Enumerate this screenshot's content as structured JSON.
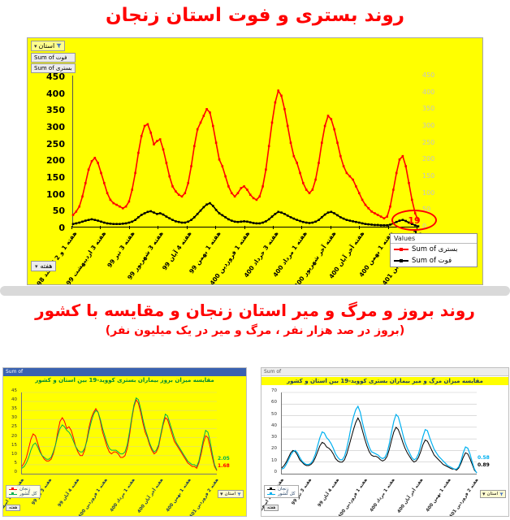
{
  "titles": {
    "second": "روند بروز و مرگ و میر استان زنجان و مقایسه با کشور",
    "subtitle": "(بروز در صد هزار نفر ، مرگ و میر در یک میلیون نفر)"
  },
  "main_chart": {
    "filter_label": "استان",
    "value_buttons": [
      "Sum of فوت",
      "Sum of بستری"
    ],
    "axis_button": "هفته",
    "legend_header": "Values",
    "annotation": "19",
    "final_death": "1"
  },
  "small_charts": {
    "header_text": "Sum of",
    "filter_label": "استان",
    "week_label": "هفته"
  },
  "chart_data": [
    {
      "id": "main",
      "type": "line",
      "title": "روند بستری و فوت استان زنجان",
      "xlabel": "",
      "ylabel": "",
      "ylim": [
        0,
        450
      ],
      "yticks": [
        0,
        50,
        100,
        150,
        200,
        250,
        300,
        350,
        400,
        450
      ],
      "grid": null,
      "legend_position": "bottom-right",
      "x_labels": [
        "هفته 1 و 2 اسفند 1398",
        "هفته 3 اردیبهشت 99",
        "هفته 3 تیر 99",
        "هفته 3 شهریور 99",
        "هفته 4 آبان 99",
        "هفته 1 بهمن 99",
        "هفته 1 فروردین 400",
        "هفته 3 خرداد 400",
        "هفته 1 مرداد 400",
        "هفته آخر شهریور 400",
        "هفته آخر آبان 400",
        "هفته 1 بهمن 400",
        "هفته 2 فروردین 1401"
      ],
      "series": [
        {
          "name": "Sum of بستری",
          "color": "#FF0000",
          "width": 1.6,
          "markers": true,
          "values": [
            35,
            45,
            60,
            90,
            130,
            170,
            195,
            205,
            190,
            160,
            130,
            100,
            80,
            70,
            65,
            60,
            55,
            60,
            75,
            110,
            160,
            220,
            270,
            300,
            305,
            280,
            245,
            255,
            260,
            230,
            190,
            150,
            120,
            105,
            95,
            90,
            100,
            130,
            180,
            240,
            290,
            310,
            330,
            350,
            340,
            300,
            250,
            200,
            180,
            150,
            120,
            100,
            90,
            100,
            115,
            120,
            110,
            95,
            85,
            80,
            90,
            120,
            170,
            240,
            310,
            370,
            405,
            390,
            350,
            300,
            250,
            210,
            190,
            160,
            130,
            110,
            100,
            110,
            140,
            190,
            250,
            300,
            330,
            320,
            290,
            250,
            210,
            180,
            160,
            150,
            140,
            120,
            100,
            80,
            65,
            55,
            45,
            40,
            35,
            30,
            25,
            30,
            60,
            110,
            160,
            200,
            210,
            180,
            130,
            80,
            40,
            19
          ]
        },
        {
          "name": "Sum of فوت",
          "color": "#000000",
          "width": 1.6,
          "markers": true,
          "values": [
            8,
            10,
            12,
            15,
            18,
            20,
            22,
            20,
            18,
            15,
            12,
            10,
            9,
            8,
            8,
            8,
            9,
            10,
            12,
            15,
            20,
            28,
            35,
            40,
            44,
            46,
            42,
            38,
            40,
            36,
            30,
            25,
            20,
            16,
            14,
            12,
            12,
            15,
            20,
            28,
            38,
            48,
            58,
            66,
            70,
            62,
            50,
            40,
            34,
            28,
            22,
            18,
            15,
            14,
            15,
            16,
            15,
            13,
            11,
            10,
            10,
            12,
            16,
            22,
            30,
            38,
            44,
            42,
            38,
            33,
            28,
            24,
            20,
            17,
            14,
            12,
            11,
            12,
            15,
            20,
            28,
            36,
            42,
            44,
            40,
            34,
            28,
            24,
            20,
            18,
            16,
            14,
            12,
            10,
            8,
            7,
            6,
            5,
            5,
            4,
            4,
            4,
            6,
            10,
            14,
            18,
            20,
            17,
            12,
            8,
            4,
            1
          ]
        }
      ]
    },
    {
      "id": "inc",
      "type": "line",
      "title": "مقایسه میزان بروز بیماران بستری کووید-19 بین استان و کشور",
      "ylim": [
        0,
        45
      ],
      "yticks": [
        0,
        5,
        10,
        15,
        20,
        25,
        30,
        35,
        40,
        45
      ],
      "grid": "#dedc7a",
      "x_labels": [
        "هفته 1 و 2 اسفند 1398",
        "هفته 3 تیر 99",
        "هفته 4 آبان 99",
        "هفته 1 فروردین 400",
        "هفته 1 مرداد 400",
        "هفته آخر آبان 400",
        "هفته 1 بهمن 400",
        "هفته 2 فروردین 1401"
      ],
      "series": [
        {
          "name": "زنجان",
          "color": "#FF0000",
          "width": 1,
          "markers": false,
          "end_label": "1.68",
          "values": [
            4,
            6,
            9,
            14,
            19,
            22,
            21,
            17,
            13,
            10,
            8,
            7,
            7,
            8,
            11,
            16,
            23,
            29,
            31,
            29,
            25,
            26,
            24,
            20,
            15,
            12,
            10,
            10,
            13,
            19,
            26,
            31,
            34,
            36,
            34,
            29,
            23,
            19,
            15,
            12,
            11,
            12,
            12,
            11,
            9,
            9,
            10,
            14,
            21,
            30,
            37,
            41,
            39,
            34,
            28,
            23,
            20,
            16,
            13,
            11,
            12,
            15,
            21,
            27,
            31,
            30,
            26,
            22,
            18,
            16,
            14,
            12,
            10,
            8,
            6,
            5,
            4,
            4,
            3,
            6,
            11,
            17,
            21,
            20,
            15,
            9,
            4,
            1.68
          ]
        },
        {
          "name": "کل کشور",
          "color": "#00B050",
          "width": 1,
          "markers": false,
          "end_label": "2.05",
          "values": [
            3,
            4,
            6,
            9,
            13,
            16,
            17,
            15,
            12,
            10,
            9,
            8,
            8,
            9,
            12,
            16,
            21,
            25,
            27,
            26,
            24,
            23,
            21,
            18,
            15,
            13,
            12,
            12,
            14,
            18,
            24,
            29,
            33,
            35,
            34,
            30,
            25,
            21,
            17,
            14,
            13,
            13,
            13,
            12,
            11,
            11,
            12,
            16,
            23,
            31,
            38,
            42,
            41,
            36,
            30,
            25,
            21,
            17,
            14,
            12,
            13,
            16,
            22,
            28,
            33,
            32,
            28,
            24,
            20,
            17,
            15,
            13,
            11,
            9,
            7,
            6,
            5,
            5,
            4,
            7,
            13,
            19,
            24,
            23,
            18,
            11,
            5,
            2.05
          ]
        }
      ]
    },
    {
      "id": "mort",
      "type": "line",
      "title": "مقایسه میزان مرگ و میر بیماران بستری کووید-19 بین استان و کشور",
      "ylim": [
        0,
        70
      ],
      "yticks": [
        0,
        10,
        20,
        30,
        40,
        50,
        60,
        70
      ],
      "grid": "#c8c8c8",
      "x_labels": [
        "هفته 1 و 2 اسفند 1398",
        "هفته 3 تیر 99",
        "هفته 4 آبان 99",
        "هفته 1 فروردین 400",
        "هفته 1 مرداد 400",
        "هفته آخر آبان 400",
        "هفته 1 بهمن 400",
        "هفته 2 فروردین 1401"
      ],
      "series": [
        {
          "name": "زنجان",
          "color": "#000000",
          "width": 1,
          "markers": false,
          "end_label": "0.89",
          "values": [
            5,
            7,
            10,
            14,
            18,
            20,
            19,
            16,
            12,
            10,
            8,
            7,
            7,
            8,
            10,
            14,
            19,
            24,
            27,
            26,
            23,
            22,
            20,
            17,
            13,
            11,
            10,
            10,
            12,
            17,
            24,
            31,
            38,
            44,
            48,
            44,
            37,
            30,
            24,
            19,
            16,
            15,
            15,
            14,
            12,
            11,
            12,
            15,
            21,
            29,
            36,
            40,
            38,
            33,
            27,
            22,
            18,
            15,
            12,
            10,
            11,
            14,
            19,
            25,
            29,
            28,
            24,
            20,
            16,
            14,
            12,
            10,
            8,
            7,
            6,
            5,
            4,
            4,
            3,
            5,
            9,
            14,
            18,
            17,
            13,
            8,
            3,
            0.89
          ]
        },
        {
          "name": "کل کشور",
          "color": "#00B0F0",
          "width": 1.2,
          "markers": false,
          "end_label": "0.58",
          "values": [
            4,
            5,
            8,
            12,
            16,
            19,
            20,
            18,
            14,
            11,
            9,
            8,
            8,
            9,
            12,
            17,
            24,
            31,
            36,
            35,
            31,
            29,
            26,
            22,
            17,
            14,
            12,
            12,
            15,
            22,
            31,
            41,
            49,
            55,
            58,
            53,
            44,
            36,
            29,
            23,
            19,
            18,
            17,
            16,
            14,
            13,
            14,
            18,
            26,
            36,
            45,
            51,
            49,
            42,
            34,
            27,
            22,
            18,
            14,
            12,
            13,
            17,
            24,
            32,
            38,
            37,
            31,
            26,
            21,
            18,
            15,
            13,
            11,
            9,
            7,
            6,
            5,
            4,
            4,
            6,
            11,
            18,
            23,
            22,
            17,
            10,
            4,
            0.58
          ]
        }
      ]
    }
  ]
}
